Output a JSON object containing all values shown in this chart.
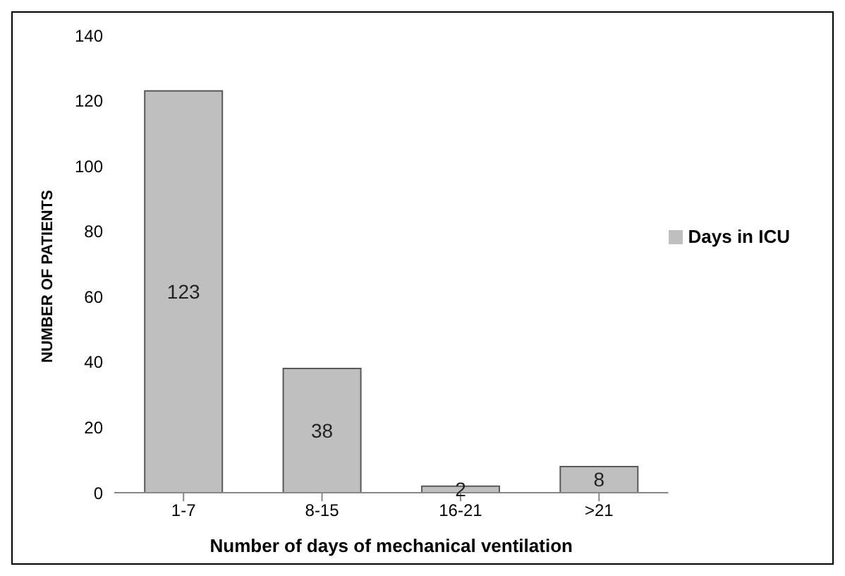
{
  "chart_data": {
    "type": "bar",
    "xlabel": "Number of days of mechanical ventilation",
    "ylabel": "NUMBER OF PATIENTS",
    "categories": [
      "1-7",
      "8-15",
      "16-21",
      ">21"
    ],
    "series": [
      {
        "name": "Days in ICU",
        "color": "#bfbfbf",
        "values": [
          123,
          38,
          2,
          8
        ]
      }
    ],
    "ylim": [
      0,
      140
    ],
    "yticks": [
      0,
      20,
      40,
      60,
      80,
      100,
      120,
      140
    ],
    "grid": false,
    "legend": "right",
    "data_labels": true
  }
}
